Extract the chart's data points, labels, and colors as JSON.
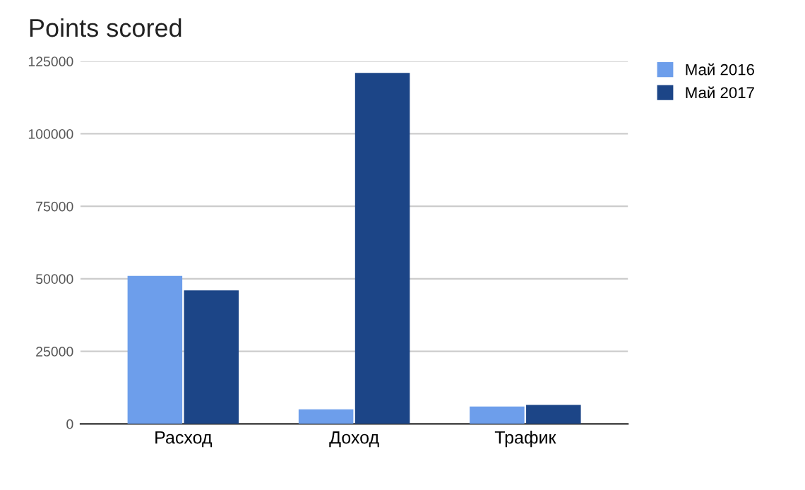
{
  "chart_data": {
    "type": "bar",
    "title": "Points scored",
    "categories": [
      "Расход",
      "Доход",
      "Трафик"
    ],
    "series": [
      {
        "name": "Май 2016",
        "color": "#6d9eeb",
        "values": [
          51000,
          5000,
          6000
        ]
      },
      {
        "name": "Май 2017",
        "color": "#1c4587",
        "values": [
          46000,
          121000,
          6500
        ]
      }
    ],
    "ylim": [
      0,
      125000
    ],
    "yticks": [
      0,
      25000,
      50000,
      75000,
      100000,
      125000
    ],
    "grid": "y",
    "legend": "top right"
  }
}
